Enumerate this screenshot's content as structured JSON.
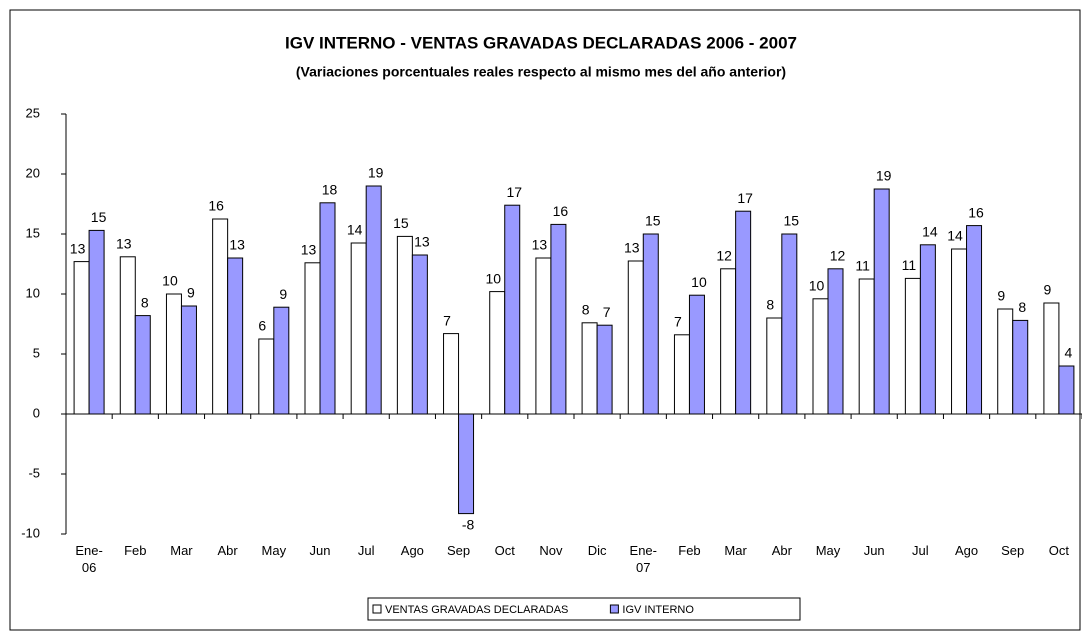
{
  "chart_data": {
    "type": "bar",
    "title": "IGV INTERNO - VENTAS GRAVADAS DECLARADAS 2006 - 2007",
    "subtitle": "(Variaciones porcentuales reales respecto al mismo mes del año anterior)",
    "categories": [
      "Ene-06",
      "Feb",
      "Mar",
      "Abr",
      "May",
      "Jun",
      "Jul",
      "Ago",
      "Sep",
      "Oct",
      "Nov",
      "Dic",
      "Ene-07",
      "Feb",
      "Mar",
      "Abr",
      "May",
      "Jun",
      "Jul",
      "Ago",
      "Sep",
      "Oct"
    ],
    "series": [
      {
        "name": "VENTAS GRAVADAS DECLARADAS",
        "color": "#ffffff",
        "values": [
          12.7,
          13.1,
          10,
          16.25,
          6.25,
          12.6,
          14.25,
          14.8,
          6.7,
          10.2,
          13,
          7.6,
          12.75,
          6.6,
          12.1,
          8,
          9.6,
          11.25,
          11.3,
          13.75,
          8.75,
          9.25
        ],
        "value_labels": [
          "13",
          "13",
          "10",
          "16",
          "6",
          "13",
          "14",
          "15",
          "7",
          "10",
          "13",
          "8",
          "13",
          "7",
          "12",
          "8",
          "10",
          "11",
          "11",
          "14",
          "9",
          "9"
        ]
      },
      {
        "name": "IGV INTERNO",
        "color": "#9999ff",
        "values": [
          15.3,
          8.2,
          9,
          13,
          8.9,
          17.6,
          19,
          13.25,
          -8.3,
          17.4,
          15.8,
          7.4,
          15,
          9.9,
          16.9,
          15,
          12.1,
          18.75,
          14.1,
          15.7,
          7.8,
          4
        ],
        "value_labels": [
          "15",
          "8",
          "9",
          "13",
          "9",
          "18",
          "19",
          "13",
          "-8",
          "17",
          "16",
          "7",
          "15",
          "10",
          "17",
          "15",
          "12",
          "19",
          "14",
          "16",
          "8",
          "4"
        ]
      }
    ],
    "ylim": [
      -10,
      25
    ],
    "yticks": [
      -10,
      -5,
      0,
      5,
      10,
      15,
      20,
      25
    ],
    "legend": "bottom"
  }
}
